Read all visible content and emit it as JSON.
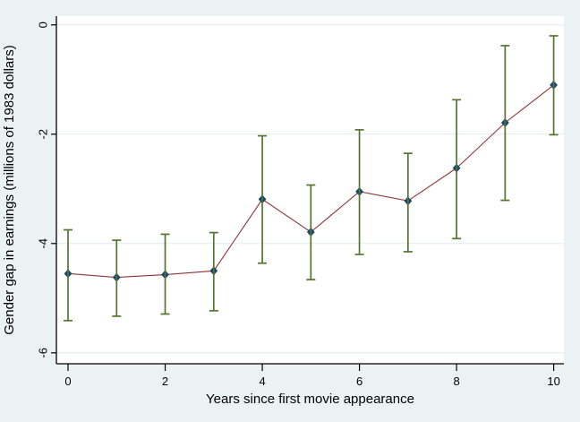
{
  "window": {
    "background_color": "#eaf2f3"
  },
  "chart_data": {
    "type": "line",
    "subtype": "point-estimates-with-confidence-intervals",
    "title": "",
    "xlabel": "Years since first movie appearance",
    "ylabel": "Gender gap in earnings (millions of 1983 dollars)",
    "x": [
      0,
      1,
      2,
      3,
      4,
      5,
      6,
      7,
      8,
      9,
      10
    ],
    "series": [
      {
        "name": "estimate",
        "values": [
          -4.55,
          -4.62,
          -4.57,
          -4.5,
          -3.19,
          -3.79,
          -3.05,
          -3.22,
          -2.62,
          -1.79,
          -1.1
        ]
      },
      {
        "name": "ci_upper",
        "values": [
          -3.75,
          -3.94,
          -3.83,
          -3.8,
          -2.03,
          -2.93,
          -1.92,
          -2.35,
          -1.37,
          -0.38,
          -0.2
        ]
      },
      {
        "name": "ci_lower",
        "values": [
          -5.41,
          -5.33,
          -5.29,
          -5.23,
          -4.36,
          -4.66,
          -4.2,
          -4.15,
          -3.91,
          -3.21,
          -2.01
        ]
      }
    ],
    "xticks": {
      "values": [
        0,
        2,
        4,
        6,
        8,
        10
      ],
      "labels": [
        "0",
        "2",
        "4",
        "6",
        "8",
        "10"
      ]
    },
    "yticks": {
      "values": [
        0,
        -2,
        -4,
        -6
      ],
      "labels": [
        "0",
        "-2",
        "-4",
        "-6"
      ]
    },
    "xlim": [
      -0.24,
      10.21
    ],
    "ylim": [
      -6.2,
      0.16
    ],
    "grid": "horizontal",
    "legend": "none",
    "marker_shape": "diamond",
    "colors": {
      "background": "#eaf2f3",
      "plot_background": "#ffffff",
      "grid_line": "#dfecef",
      "axis_line": "#000000",
      "tick_label": "#000000",
      "estimate_line": "#90353b",
      "marker": "#1a476f",
      "error_bar": "#55752f"
    }
  }
}
